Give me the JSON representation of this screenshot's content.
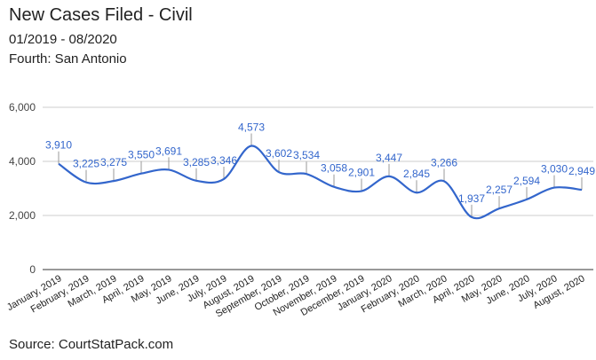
{
  "chart_data": {
    "type": "line",
    "title": "New Cases Filed - Civil",
    "subtitle_lines": [
      "01/2019 - 08/2020",
      "Fourth: San Antonio"
    ],
    "source": "Source: CourtStatPack.com",
    "categories": [
      "January, 2019",
      "February, 2019",
      "March, 2019",
      "April, 2019",
      "May, 2019",
      "June, 2019",
      "July, 2019",
      "August, 2019",
      "September, 2019",
      "October, 2019",
      "November, 2019",
      "December, 2019",
      "January, 2020",
      "February, 2020",
      "March, 2020",
      "April, 2020",
      "May, 2020",
      "June, 2020",
      "July, 2020",
      "August, 2020"
    ],
    "values": [
      3910,
      3225,
      3275,
      3550,
      3691,
      3285,
      3346,
      4573,
      3602,
      3534,
      3058,
      2901,
      3447,
      2845,
      3266,
      1937,
      2257,
      2594,
      3030,
      2949
    ],
    "data_labels": [
      "3,910",
      "3,225",
      "3,275",
      "3,550",
      "3,691",
      "3,285",
      "3,346",
      "4,573",
      "3,602",
      "3,534",
      "3,058",
      "2,901",
      "3,447",
      "2,845",
      "3,266",
      "1,937",
      "2,257",
      "2,594",
      "3,030",
      "2,949"
    ],
    "yticks": [
      0,
      2000,
      4000,
      6000
    ],
    "ytick_labels": [
      "0",
      "2,000",
      "4,000",
      "6,000"
    ],
    "ylim": [
      0,
      6000
    ],
    "xlabel": "",
    "ylabel": "",
    "grid": true,
    "legend": "none",
    "line_color": "#3366cc"
  }
}
